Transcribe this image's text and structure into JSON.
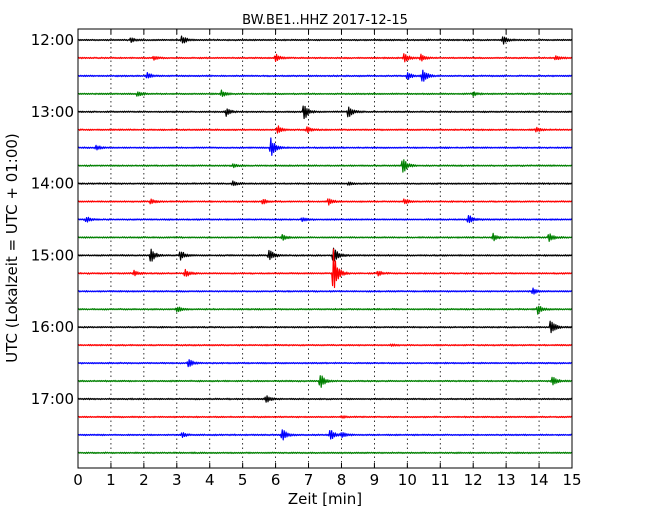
{
  "chart_data": {
    "type": "line",
    "title": "BW.BE1..HHZ 2017-12-15",
    "xlabel": "Zeit  [min]",
    "ylabel": "UTC (Lokalzeit = UTC + 01:00)",
    "xlim": [
      0,
      15
    ],
    "x_ticks": [
      "0",
      "1",
      "2",
      "3",
      "4",
      "5",
      "6",
      "7",
      "8",
      "9",
      "10",
      "11",
      "12",
      "13",
      "14",
      "15"
    ],
    "y_ticks": [
      "12:00",
      "13:00",
      "14:00",
      "15:00",
      "16:00",
      "17:00"
    ],
    "grid": "vertical dotted",
    "colors": [
      "#000000",
      "#ff0000",
      "#0000ff",
      "#008000"
    ],
    "series": [
      {
        "start": "12:00",
        "color": "#000000",
        "events": [
          {
            "x": 1.6,
            "amp": 2.2
          },
          {
            "x": 3.15,
            "amp": 4.5
          },
          {
            "x": 12.9,
            "amp": 5
          }
        ]
      },
      {
        "start": "12:15",
        "color": "#ff0000",
        "events": [
          {
            "x": 2.3,
            "amp": 2.2
          },
          {
            "x": 6,
            "amp": 4.2
          },
          {
            "x": 9.9,
            "amp": 5.5
          },
          {
            "x": 10.4,
            "amp": 4
          },
          {
            "x": 14.5,
            "amp": 2.5
          }
        ]
      },
      {
        "start": "12:30",
        "color": "#0000ff",
        "events": [
          {
            "x": 2.1,
            "amp": 3.5
          },
          {
            "x": 10,
            "amp": 4
          },
          {
            "x": 10.45,
            "amp": 9
          }
        ]
      },
      {
        "start": "12:45",
        "color": "#008000",
        "events": [
          {
            "x": 1.8,
            "amp": 3
          },
          {
            "x": 4.35,
            "amp": 3.5
          },
          {
            "x": 12,
            "amp": 2
          }
        ]
      },
      {
        "start": "13:00",
        "color": "#000000",
        "events": [
          {
            "x": 4.5,
            "amp": 4
          },
          {
            "x": 6.85,
            "amp": 9.5
          },
          {
            "x": 8.2,
            "amp": 6.5
          }
        ]
      },
      {
        "start": "13:15",
        "color": "#ff0000",
        "events": [
          {
            "x": 6.05,
            "amp": 5
          },
          {
            "x": 6.95,
            "amp": 3
          },
          {
            "x": 13.9,
            "amp": 2.5
          }
        ]
      },
      {
        "start": "13:30",
        "color": "#0000ff",
        "events": [
          {
            "x": 0.55,
            "amp": 2.5
          },
          {
            "x": 5.85,
            "amp": 11
          }
        ]
      },
      {
        "start": "13:45",
        "color": "#008000",
        "events": [
          {
            "x": 4.7,
            "amp": 2
          },
          {
            "x": 9.85,
            "amp": 9
          }
        ]
      },
      {
        "start": "14:00",
        "color": "#000000",
        "events": [
          {
            "x": 4.7,
            "amp": 2.5
          },
          {
            "x": 8.2,
            "amp": 2
          }
        ]
      },
      {
        "start": "14:15",
        "color": "#ff0000",
        "events": [
          {
            "x": 2.2,
            "amp": 3
          },
          {
            "x": 5.6,
            "amp": 3
          },
          {
            "x": 7.6,
            "amp": 4
          },
          {
            "x": 9.9,
            "amp": 3
          }
        ]
      },
      {
        "start": "14:30",
        "color": "#0000ff",
        "events": [
          {
            "x": 0.25,
            "amp": 3
          },
          {
            "x": 6.8,
            "amp": 2
          },
          {
            "x": 11.85,
            "amp": 6
          }
        ]
      },
      {
        "start": "14:45",
        "color": "#008000",
        "events": [
          {
            "x": 6.2,
            "amp": 3
          },
          {
            "x": 12.6,
            "amp": 4
          },
          {
            "x": 14.3,
            "amp": 5
          }
        ]
      },
      {
        "start": "15:00",
        "color": "#000000",
        "events": [
          {
            "x": 2.2,
            "amp": 8
          },
          {
            "x": 3.1,
            "amp": 6
          },
          {
            "x": 5.8,
            "amp": 7
          },
          {
            "x": 7.75,
            "amp": 10
          }
        ]
      },
      {
        "start": "15:15",
        "color": "#ff0000",
        "events": [
          {
            "x": 1.7,
            "amp": 3
          },
          {
            "x": 3.25,
            "amp": 4
          },
          {
            "x": 7.75,
            "amp": 26
          },
          {
            "x": 9.1,
            "amp": 3
          }
        ]
      },
      {
        "start": "15:30",
        "color": "#0000ff",
        "events": [
          {
            "x": 13.8,
            "amp": 4
          }
        ]
      },
      {
        "start": "15:45",
        "color": "#008000",
        "events": [
          {
            "x": 3,
            "amp": 3
          },
          {
            "x": 13.95,
            "amp": 5
          }
        ]
      },
      {
        "start": "16:00",
        "color": "#000000",
        "events": [
          {
            "x": 14.35,
            "amp": 9
          }
        ]
      },
      {
        "start": "16:15",
        "color": "#ff0000",
        "events": [
          {
            "x": 9.5,
            "amp": 1
          }
        ]
      },
      {
        "start": "16:30",
        "color": "#0000ff",
        "events": [
          {
            "x": 3.35,
            "amp": 4.5
          }
        ]
      },
      {
        "start": "16:45",
        "color": "#008000",
        "events": [
          {
            "x": 7.35,
            "amp": 8
          },
          {
            "x": 14.4,
            "amp": 6
          }
        ]
      },
      {
        "start": "17:00",
        "color": "#000000",
        "events": [
          {
            "x": 5.7,
            "amp": 4
          }
        ]
      },
      {
        "start": "17:15",
        "color": "#ff0000",
        "events": [
          {
            "x": 8,
            "amp": 1
          }
        ]
      },
      {
        "start": "17:30",
        "color": "#0000ff",
        "events": [
          {
            "x": 3.15,
            "amp": 3
          },
          {
            "x": 6.2,
            "amp": 7
          },
          {
            "x": 7.65,
            "amp": 6.5
          },
          {
            "x": 8,
            "amp": 3
          }
        ]
      },
      {
        "start": "17:45",
        "color": "#008000",
        "events": []
      }
    ]
  }
}
